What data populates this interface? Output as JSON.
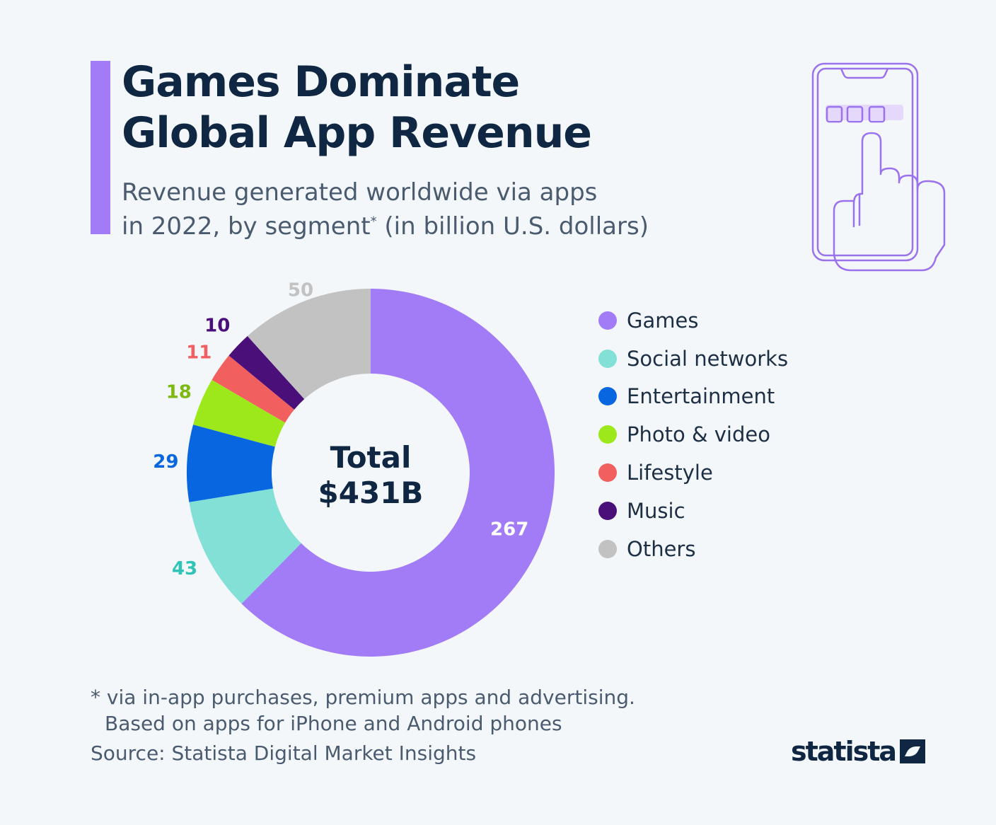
{
  "header": {
    "title_line1": "Games Dominate",
    "title_line2": "Global App Revenue",
    "subtitle_line1": "Revenue generated worldwide via apps",
    "subtitle_line2_a": "in 2022, by segment",
    "subtitle_sup": "*",
    "subtitle_line2_b": " (in billion U.S. dollars)",
    "accent_color": "#a27bf7"
  },
  "illustration": {
    "icon": "phone-tap-icon",
    "color": "#9b72ee"
  },
  "center": {
    "line1": "Total",
    "line2": "$431B"
  },
  "chart_data": {
    "type": "pie",
    "variant": "donut",
    "categories": [
      "Games",
      "Social networks",
      "Entertainment",
      "Photo & video",
      "Lifestyle",
      "Music",
      "Others"
    ],
    "values": [
      267,
      43,
      29,
      18,
      11,
      10,
      50
    ],
    "value_labels": [
      "267",
      "43",
      "29",
      "18",
      "11",
      "10",
      "50"
    ],
    "colors": [
      "#a27bf7",
      "#82e0d7",
      "#0866e0",
      "#9de81a",
      "#f25f5f",
      "#4b0f7a",
      "#c2c2c2"
    ],
    "label_colors": [
      "#ffffff",
      "#2ec4b6",
      "#0866e0",
      "#7dba10",
      "#f25f5f",
      "#4b0f7a",
      "#c2c2c2"
    ],
    "legend_position": "right"
  },
  "footnote": {
    "line1": "* via in-app purchases, premium apps and advertising.",
    "line2": "Based on apps for iPhone and Android phones"
  },
  "source": "Source: Statista Digital Market Insights",
  "brand": {
    "name": "statista",
    "icon": "statista-logo-icon"
  }
}
